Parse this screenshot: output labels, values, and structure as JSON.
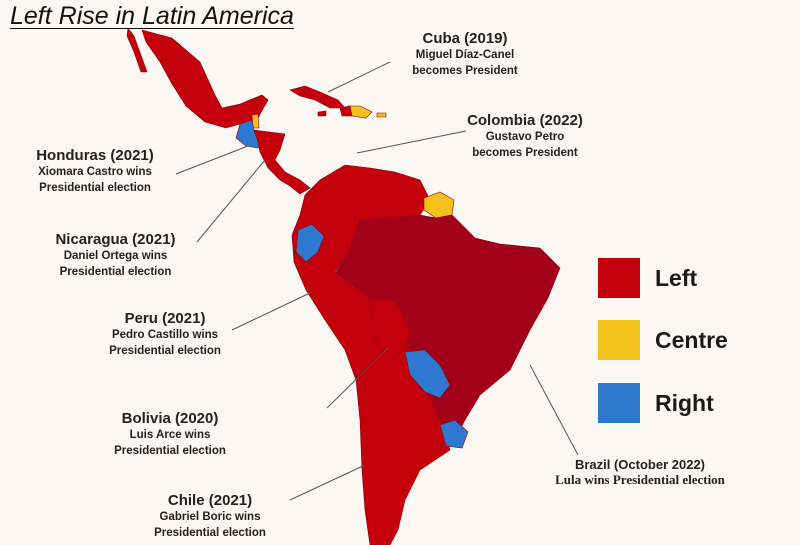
{
  "title": "Left Rise in Latin America",
  "colors": {
    "left": "#c4000c",
    "brazil": "#a3001a",
    "centre": "#f3c11b",
    "right": "#2f78cf",
    "background": "#fbf8f3"
  },
  "annotations": {
    "cuba": {
      "heading": "Cuba (2019)",
      "line1": "Miguel Díaz-Canel",
      "line2": "becomes President"
    },
    "colombia": {
      "heading": "Colombia (2022)",
      "line1": "Gustavo Petro",
      "line2": "becomes President"
    },
    "honduras": {
      "heading": "Honduras (2021)",
      "line1": "Xiomara Castro wins",
      "line2": "Presidential election"
    },
    "nicaragua": {
      "heading": "Nicaragua (2021)",
      "line1": "Daniel Ortega wins",
      "line2": "Presidential election"
    },
    "peru": {
      "heading": "Peru (2021)",
      "line1": "Pedro Castillo wins",
      "line2": "Presidential election"
    },
    "bolivia": {
      "heading": "Bolivia (2020)",
      "line1": "Luis Arce wins",
      "line2": "Presidential election"
    },
    "chile": {
      "heading": "Chile (2021)",
      "line1": "Gabriel Boric wins",
      "line2": "Presidential election"
    },
    "brazil": {
      "heading": "Brazil (October 2022)",
      "line1": "Lula wins Presidential election"
    }
  },
  "legend": [
    {
      "label": "Left",
      "color": "#c4000c"
    },
    {
      "label": "Centre",
      "color": "#f3c11b"
    },
    {
      "label": "Right",
      "color": "#2f78cf"
    }
  ]
}
